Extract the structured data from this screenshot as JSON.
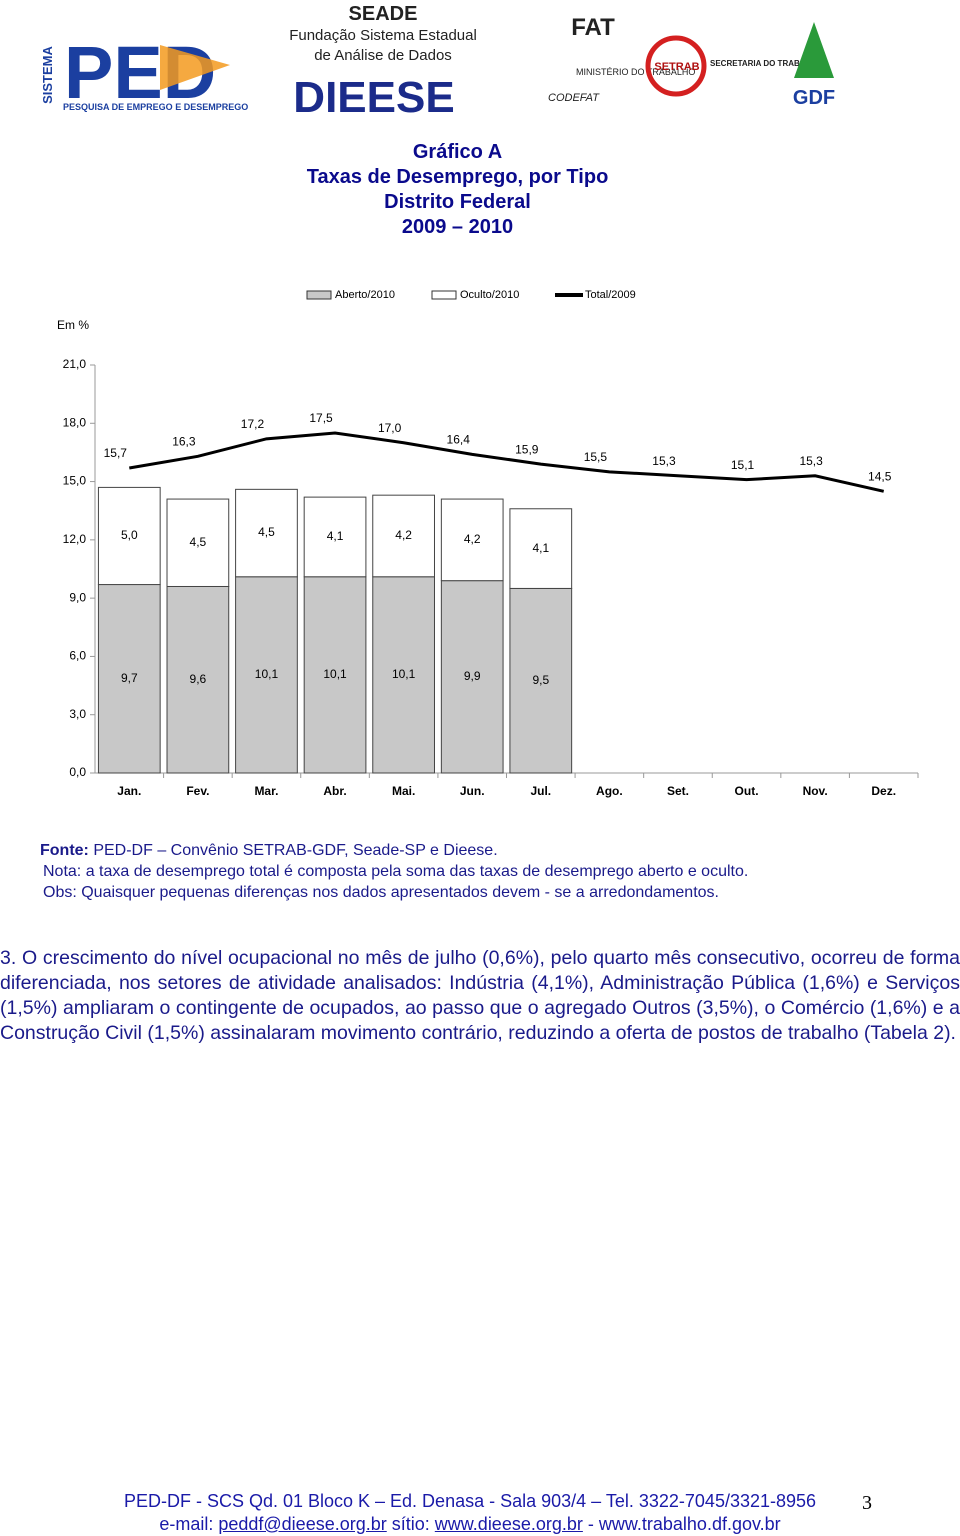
{
  "logos": {
    "ped_side": "SISTEMA",
    "ped": "PED",
    "ped_sub": "PESQUISA DE EMPREGO E DESEMPREGO",
    "seade": "SEADE",
    "seade_sub1": "Fundação Sistema Estadual",
    "seade_sub2": "de Análise de Dados",
    "dieese": "DIEESE",
    "fat": "FAT",
    "mt": "MINISTÉRIO DO TRABALHO",
    "codefat": "CODEFAT",
    "setrab": "SETRAB",
    "setrab_sub": "SECRETARIA DO TRABALHO",
    "gdf": "GDF"
  },
  "chart_data": {
    "type": "bar",
    "titles": [
      "Gráfico A",
      "Taxas de Desemprego, por Tipo",
      "Distrito Federal",
      "2009 – 2010"
    ],
    "unit_label": "Em %",
    "categories": [
      "Jan.",
      "Fev.",
      "Mar.",
      "Abr.",
      "Mai.",
      "Jun.",
      "Jul.",
      "Ago.",
      "Set.",
      "Out.",
      "Nov.",
      "Dez."
    ],
    "stacked": true,
    "series": [
      {
        "name": "Aberto/2010",
        "type": "bar",
        "color": "#c8c8c8",
        "values": [
          9.7,
          9.6,
          10.1,
          10.1,
          10.1,
          9.9,
          9.5,
          null,
          null,
          null,
          null,
          null
        ],
        "value_labels": [
          "9,7",
          "9,6",
          "10,1",
          "10,1",
          "10,1",
          "9,9",
          "9,5",
          null,
          null,
          null,
          null,
          null
        ]
      },
      {
        "name": "Oculto/2010",
        "type": "bar",
        "color": "#ffffff",
        "values": [
          5.0,
          4.5,
          4.5,
          4.1,
          4.2,
          4.2,
          4.1,
          null,
          null,
          null,
          null,
          null
        ],
        "value_labels": [
          "5,0",
          "4,5",
          "4,5",
          "4,1",
          "4,2",
          "4,2",
          "4,1",
          null,
          null,
          null,
          null,
          null
        ]
      },
      {
        "name": "Total/2009",
        "type": "line",
        "color": "#000000",
        "values": [
          15.7,
          16.3,
          17.2,
          17.5,
          17.0,
          16.4,
          15.9,
          15.5,
          15.3,
          15.1,
          15.3,
          14.5
        ],
        "value_labels": [
          "15,7",
          "16,3",
          "17,2",
          "17,5",
          "17,0",
          "16,4",
          "15,9",
          "15,5",
          "15,3",
          "15,1",
          "15,3",
          "14,5"
        ]
      }
    ],
    "ylim": [
      0,
      21
    ],
    "yticks": [
      {
        "value": 0,
        "label": "0,0"
      },
      {
        "value": 3,
        "label": "3,0"
      },
      {
        "value": 6,
        "label": "6,0"
      },
      {
        "value": 9,
        "label": "9,0"
      },
      {
        "value": 12,
        "label": "12,0"
      },
      {
        "value": 15,
        "label": "15,0"
      },
      {
        "value": 18,
        "label": "18,0"
      },
      {
        "value": 21,
        "label": "21,0"
      }
    ],
    "grid": false,
    "legend": "top"
  },
  "notes": {
    "source_label": "Fonte:",
    "source": "PED-DF – Convênio SETRAB-GDF, Seade-SP e Dieese.",
    "nota": "Nota: a taxa de desemprego total é composta pela soma das taxas de desemprego aberto e oculto.",
    "obs": "Obs: Quaisquer pequenas diferenças nos dados apresentados devem - se a arredondamentos."
  },
  "paragraph": "3. O crescimento do nível ocupacional no mês de julho (0,6%), pelo quarto mês consecutivo, ocorreu de forma diferenciada, nos setores de atividade analisados: Indústria (4,1%), Administração Pública (1,6%) e Serviços (1,5%) ampliaram o contingente de ocupados, ao passo que o agregado Outros (3,5%), o Comércio (1,6%) e a Construção Civil (1,5%) assinalaram movimento contrário, reduzindo a oferta de postos de trabalho (Tabela 2).",
  "footer": {
    "line1": "PED-DF - SCS Qd. 01 Bloco K – Ed. Denasa - Sala 903/4 – Tel. 3322-7045/3321-8956",
    "email_label": "e-mail:",
    "email": "peddf@dieese.org.br",
    "site_label": "sítio:",
    "site": "www.dieese.org.br",
    "site2": "- www.trabalho.df.gov.br",
    "page_number": "3"
  }
}
